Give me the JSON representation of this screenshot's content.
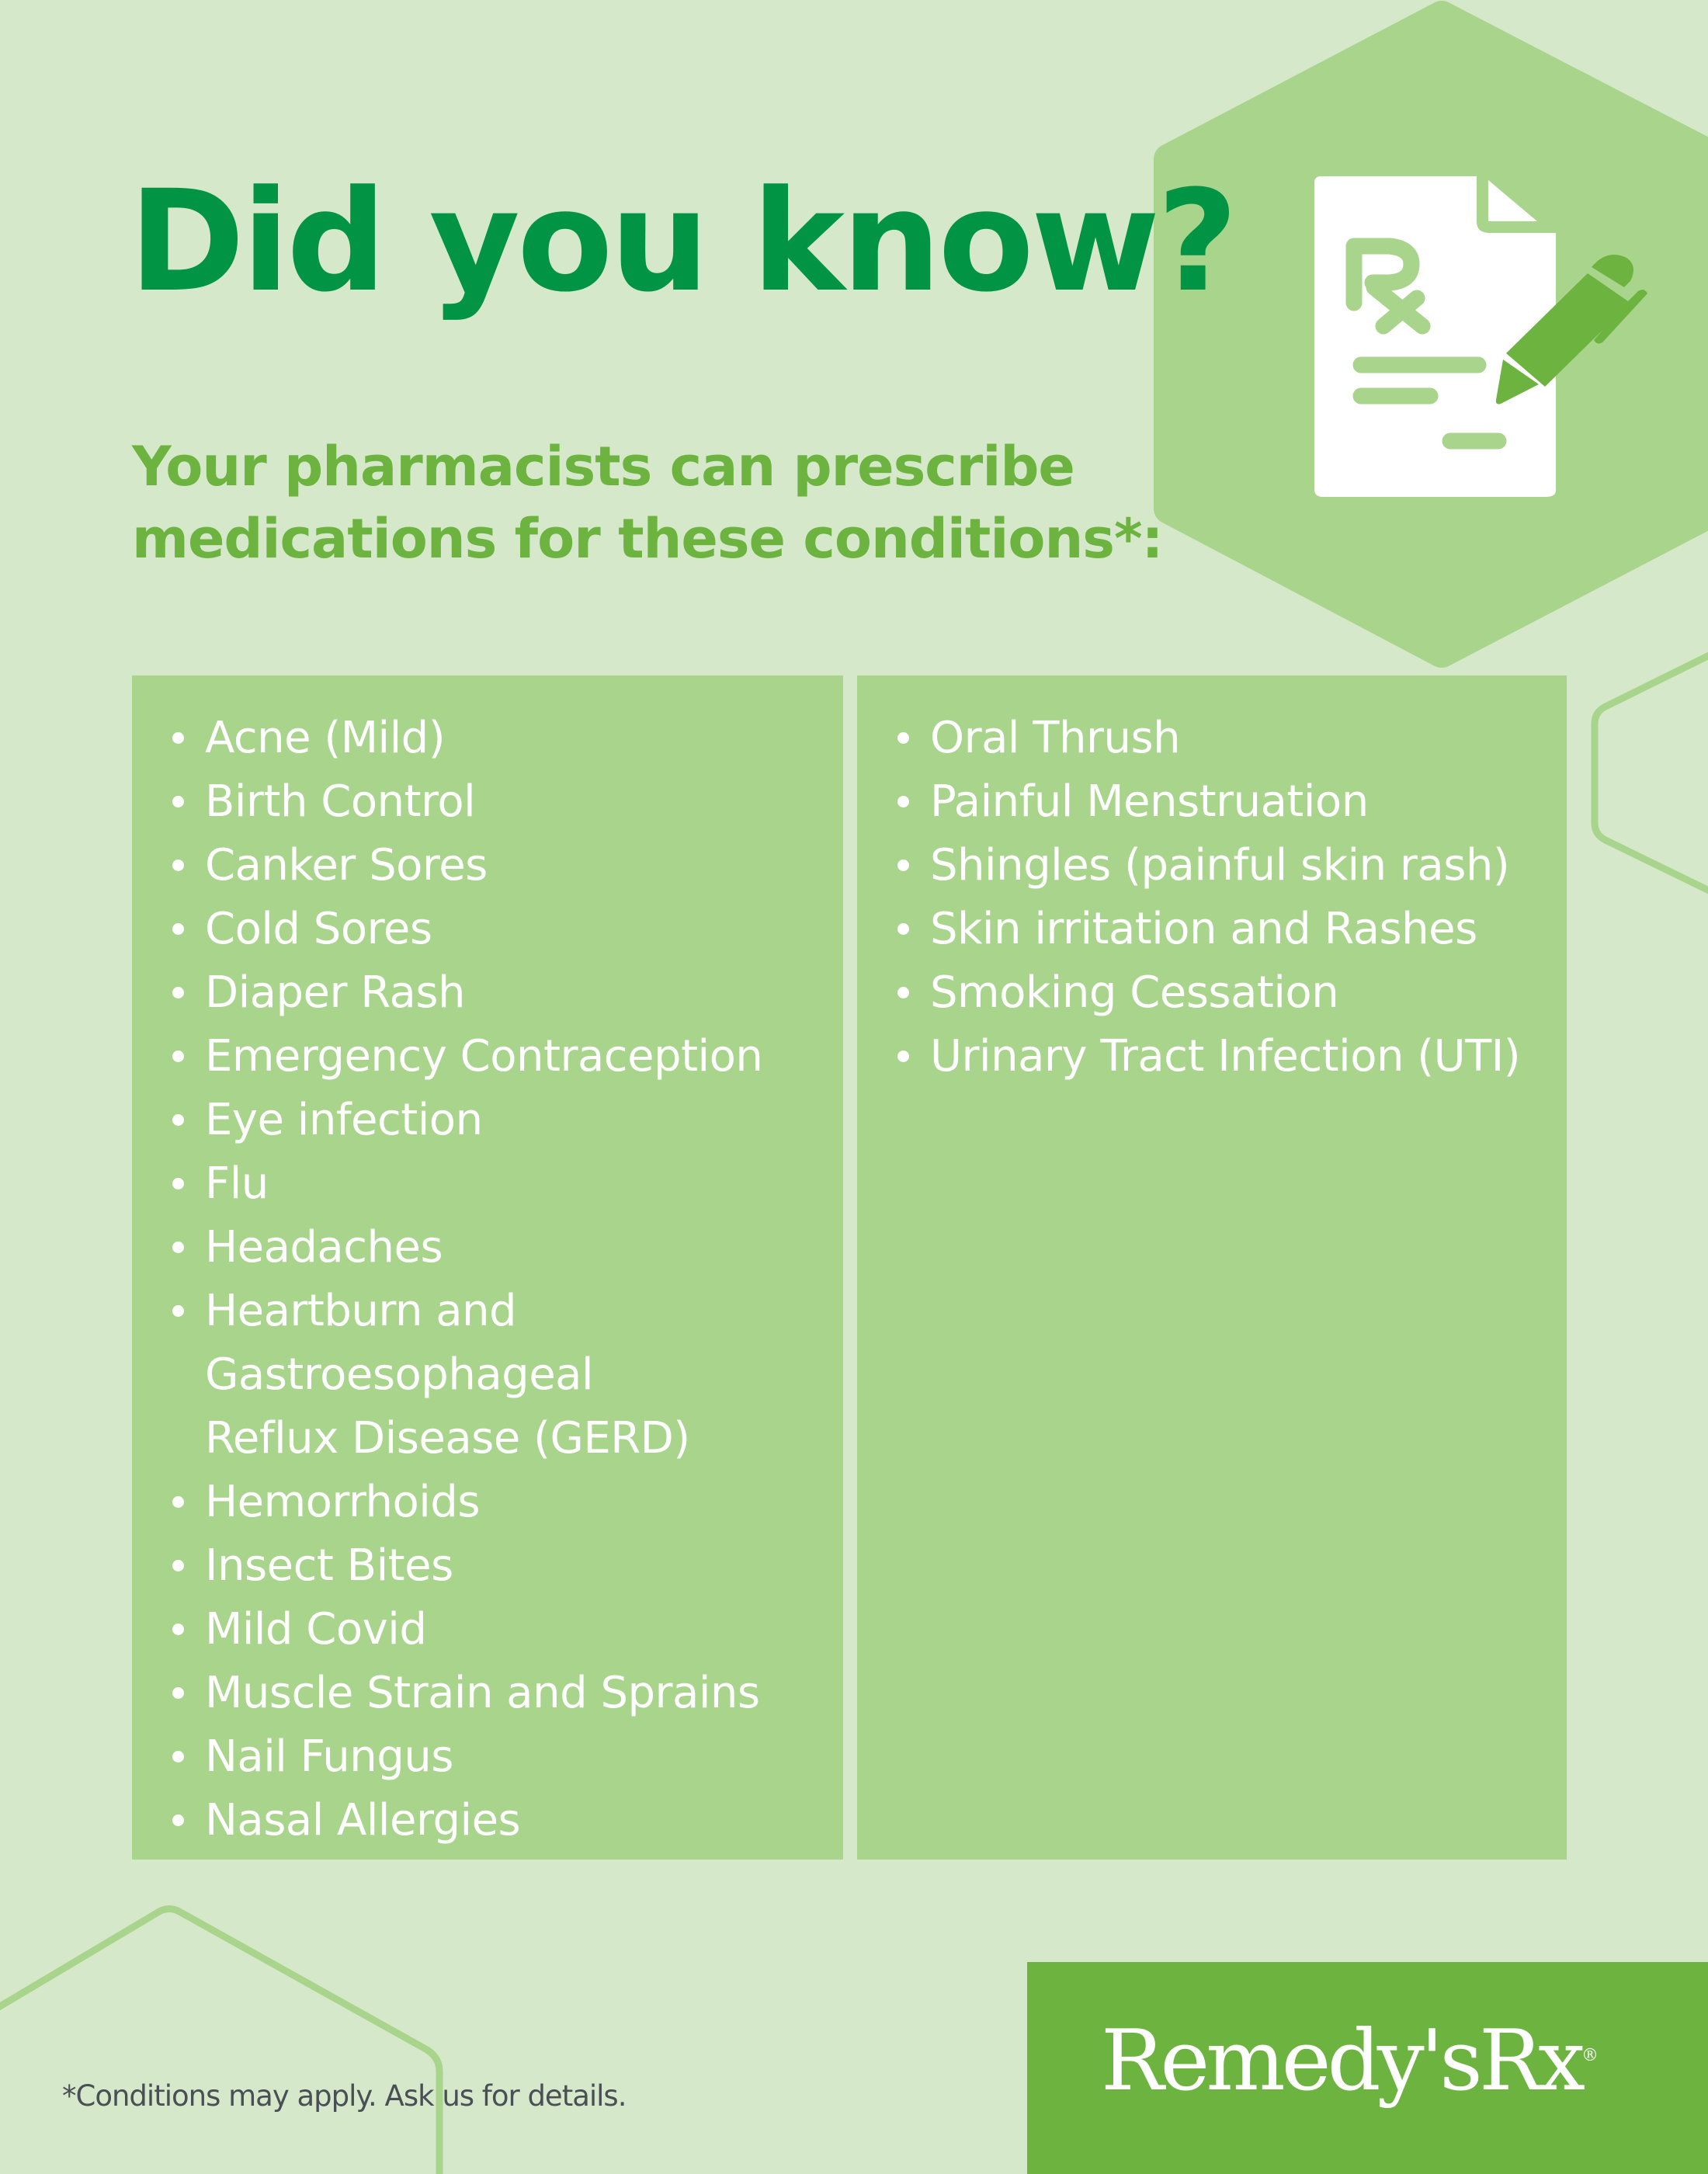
{
  "header": {
    "title": "Did you know?",
    "subtitle_line1": "Your pharmacists can prescribe",
    "subtitle_line2": "medications for these conditions*:"
  },
  "conditions": {
    "left": [
      "Acne (Mild)",
      "Birth Control",
      "Canker Sores",
      "Cold Sores",
      "Diaper Rash",
      "Emergency Contraception",
      "Eye infection",
      "Flu",
      "Headaches",
      "Heartburn and Gastroesophageal Reflux Disease (GERD)",
      "Hemorrhoids",
      "Insect Bites",
      "Mild Covid",
      "Muscle Strain and Sprains",
      "Nail Fungus",
      "Nasal Allergies"
    ],
    "right": [
      "Oral Thrush",
      "Painful Menstruation",
      "Shingles (painful skin rash)",
      "Skin irritation and Rashes",
      "Smoking Cessation",
      "Urinary Tract Infection (UTI)"
    ]
  },
  "icon": {
    "name": "prescription-document-pen-icon",
    "text": "Rx"
  },
  "footnote": "*Conditions may apply. Ask us for details.",
  "brand": {
    "logo": "Remedy'sRx",
    "registered": "®"
  },
  "colors": {
    "background": "#d5e9ca",
    "panel": "#a9d48c",
    "title": "#009444",
    "accent": "#6db33f",
    "footnote": "#4a4f55"
  }
}
